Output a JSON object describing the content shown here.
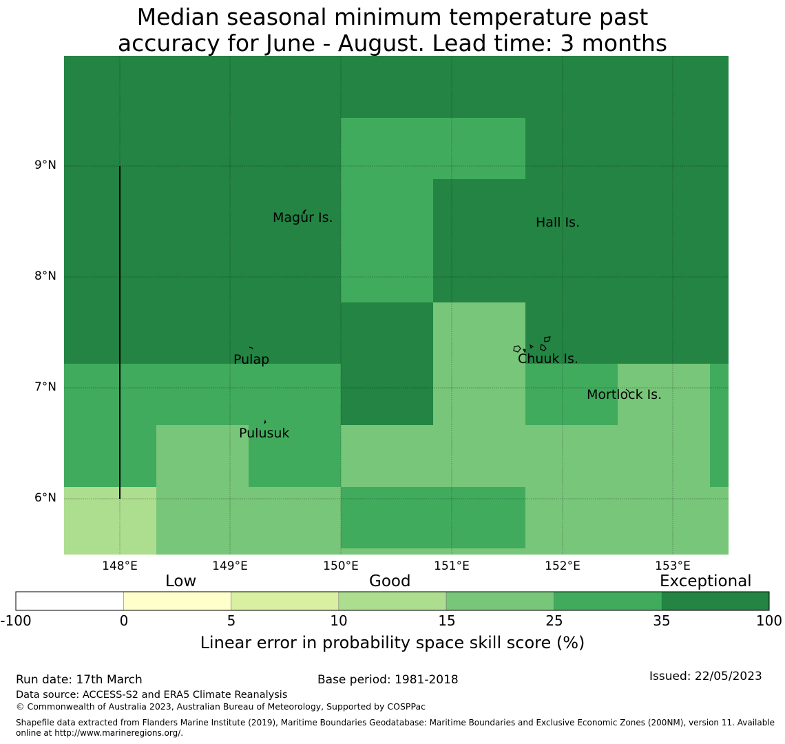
{
  "title": {
    "line1": "Median seasonal minimum temperature past",
    "line2": "accuracy for June - August. Lead time: 3 months"
  },
  "map": {
    "lon_range": [
      147.5,
      153.5
    ],
    "lat_range": [
      5.5,
      10.0
    ],
    "lat_ticks": [
      "9°N",
      "8°N",
      "7°N",
      "6°N"
    ],
    "lon_ticks": [
      "148°E",
      "149°E",
      "150°E",
      "151°E",
      "152°E",
      "153°E"
    ],
    "places": [
      {
        "name": "Magur Is."
      },
      {
        "name": "Hall Is."
      },
      {
        "name": "Pulap"
      },
      {
        "name": "Chuuk Is."
      },
      {
        "name": "Mortlock Is."
      },
      {
        "name": "Pulusuk"
      }
    ],
    "category_colors": {
      "15-25": "#78c679",
      "25-35": "#41ab5d",
      "35-100": "#238443",
      "10-15": "#addd8e"
    }
  },
  "colorbar": {
    "categories": [
      "Low",
      "Good",
      "Exceptional"
    ],
    "ticks": [
      "-100",
      "0",
      "5",
      "10",
      "15",
      "25",
      "35",
      "100"
    ],
    "colors": [
      "#ffffff",
      "#ffffcc",
      "#d9f0a3",
      "#addd8e",
      "#78c679",
      "#41ab5d",
      "#238443"
    ],
    "label": "Linear error in probability space skill score (%)"
  },
  "footer": {
    "run_date": "Run date: 17th March",
    "base_period": "Base period: 1981-2018",
    "issued": "Issued: 22/05/2023",
    "data_source": "Data source: ACCESS-S2 and ERA5 Climate Reanalysis",
    "copyright": "© Commonwealth of Australia 2023, Australian Bureau of Meteorology, Supported by COSPPac",
    "shapefile_line1": "Shapefile data extracted from Flanders Marine Institute (2019), Maritime Boundaries Geodatabase: Maritime Boundaries and Exclusive Economic Zones (200NM), version 11. Available",
    "shapefile_line2": "online at http://www.marineregions.org/."
  }
}
